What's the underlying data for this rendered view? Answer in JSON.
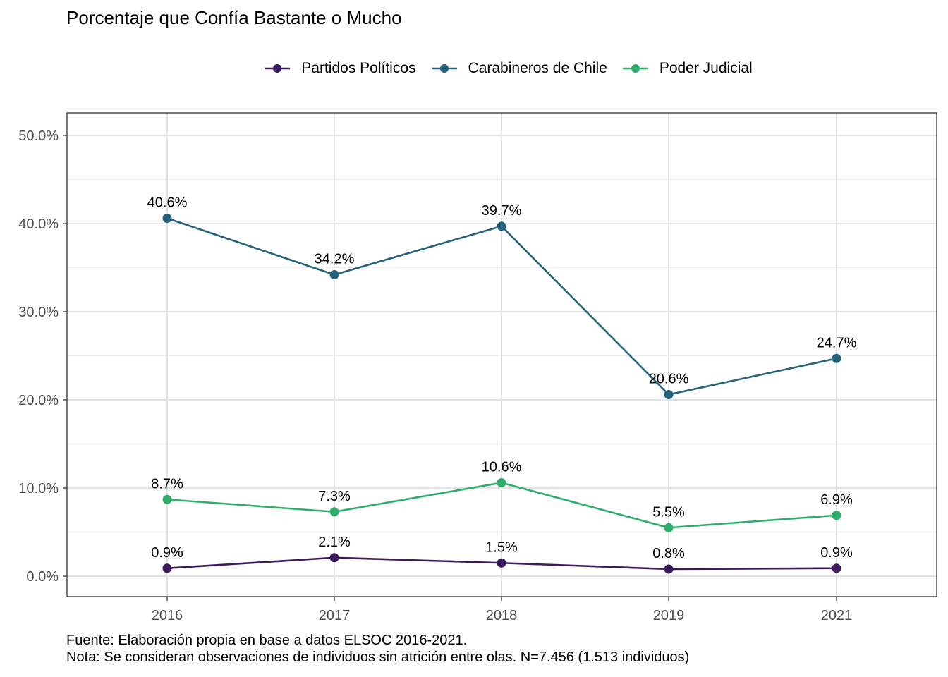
{
  "chart_data": {
    "type": "line",
    "title": "Porcentaje que Confía Bastante o Mucho",
    "xlabel": "",
    "ylabel": "",
    "x": [
      "2016",
      "2017",
      "2018",
      "2019",
      "2021"
    ],
    "ylim": [
      0,
      50
    ],
    "yticks": [
      "0.0%",
      "10.0%",
      "20.0%",
      "30.0%",
      "40.0%",
      "50.0%"
    ],
    "grid": true,
    "legend_position": "top",
    "series": [
      {
        "name": "Partidos Políticos",
        "color": "#3b1a5e",
        "values": [
          0.9,
          2.1,
          1.5,
          0.8,
          0.9
        ],
        "labels": [
          "0.9%",
          "2.1%",
          "1.5%",
          "0.8%",
          "0.9%"
        ]
      },
      {
        "name": "Carabineros de Chile",
        "color": "#25637c",
        "values": [
          40.6,
          34.2,
          39.7,
          20.6,
          24.7
        ],
        "labels": [
          "40.6%",
          "34.2%",
          "39.7%",
          "20.6%",
          "24.7%"
        ]
      },
      {
        "name": "Poder Judicial",
        "color": "#2fae6b",
        "values": [
          8.7,
          7.3,
          10.6,
          5.5,
          6.9
        ],
        "labels": [
          "8.7%",
          "7.3%",
          "10.6%",
          "5.5%",
          "6.9%"
        ]
      }
    ],
    "caption": [
      "Fuente: Elaboración propia en base a datos ELSOC 2016-2021.",
      "Nota: Se consideran observaciones de individuos sin atrición entre olas. N=7.456 (1.513 individuos)"
    ]
  }
}
